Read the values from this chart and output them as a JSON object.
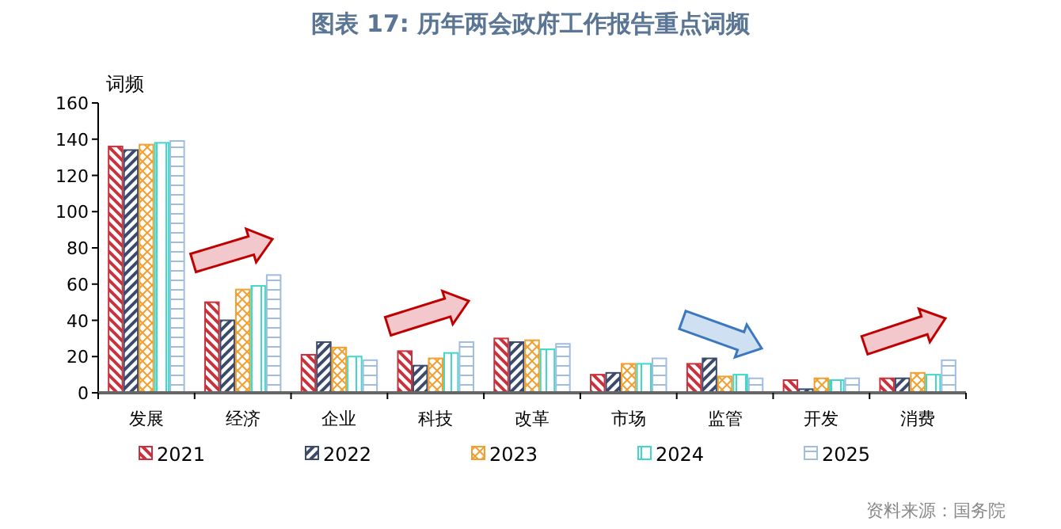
{
  "chart_data": {
    "type": "bar",
    "title": "图表 17: 历年两会政府工作报告重点词频",
    "ylabel": "词频",
    "annotations": [
      "资料来源：国务院"
    ],
    "categories": [
      "发展",
      "经济",
      "企业",
      "科技",
      "改革",
      "市场",
      "监管",
      "开发",
      "消费"
    ],
    "series": [
      {
        "name": "2021",
        "color": "#c8323c",
        "values": [
          136,
          50,
          21,
          23,
          30,
          10,
          16,
          7,
          8
        ]
      },
      {
        "name": "2022",
        "color": "#3c4a6b",
        "values": [
          134,
          40,
          28,
          15,
          28,
          11,
          19,
          2,
          8
        ]
      },
      {
        "name": "2023",
        "color": "#f0a030",
        "values": [
          137,
          57,
          25,
          19,
          29,
          16,
          9,
          8,
          11
        ]
      },
      {
        "name": "2024",
        "color": "#40d8c8",
        "values": [
          138,
          59,
          20,
          22,
          24,
          16,
          10,
          7,
          10
        ]
      },
      {
        "name": "2025",
        "color": "#a0bce0",
        "values": [
          139,
          65,
          18,
          28,
          27,
          19,
          8,
          8,
          18
        ]
      }
    ],
    "ylim": [
      0,
      160
    ],
    "yticks": [
      0,
      20,
      40,
      60,
      80,
      100,
      120,
      140,
      160
    ],
    "legend": "bottom"
  }
}
